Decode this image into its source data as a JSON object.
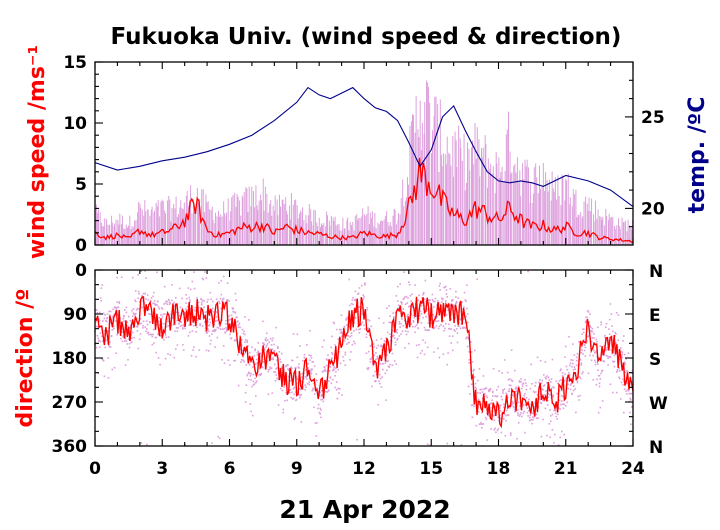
{
  "chart_data": [
    {
      "type": "line",
      "panel": "top",
      "title": "Fukuoka Univ. (wind speed & direction)",
      "xlabel": "21 Apr 2022",
      "xlim": [
        0,
        24
      ],
      "x_ticks": [
        0,
        3,
        6,
        9,
        12,
        15,
        18,
        21,
        24
      ],
      "ylabel": "wind speed /ms⁻¹",
      "ylim": [
        0,
        15
      ],
      "y_ticks": [
        0,
        5,
        10,
        15
      ],
      "y2label": "temp. /ºC",
      "y2lim": [
        18,
        28
      ],
      "y2_ticks": [
        20,
        25
      ],
      "colors": {
        "mean": "#ff0000",
        "gust": "#dda0dd",
        "temperature": "#00008b"
      },
      "series": [
        {
          "axis": "left",
          "x": [
            0,
            0.5,
            1,
            1.5,
            2,
            2.5,
            3,
            3.5,
            4,
            4.5,
            5,
            5.5,
            6,
            6.5,
            7,
            7.5,
            8,
            8.5,
            9,
            9.5,
            10,
            10.5,
            11,
            11.5,
            12,
            12.5,
            13,
            13.5,
            14,
            14.5,
            15,
            15.5,
            16,
            16.5,
            17,
            17.5,
            18,
            18.5,
            19,
            19.5,
            20,
            20.5,
            21,
            21.5,
            22,
            22.5,
            23,
            23.5,
            24
          ],
          "values": [
            1.0,
            0.6,
            0.8,
            0.5,
            1.2,
            0.8,
            1.0,
            1.3,
            2.0,
            3.5,
            1.2,
            0.8,
            1.0,
            1.4,
            1.5,
            1.6,
            1.0,
            1.5,
            1.2,
            1.0,
            0.9,
            0.7,
            0.6,
            0.6,
            1.0,
            0.8,
            0.7,
            0.9,
            3.0,
            6.0,
            5.0,
            3.5,
            2.5,
            2.0,
            3.0,
            2.5,
            2.0,
            3.0,
            2.0,
            1.5,
            1.6,
            1.2,
            1.5,
            1.0,
            1.0,
            0.6,
            0.5,
            0.4,
            0.3
          ]
        },
        {
          "axis": "left",
          "x": [
            0,
            0.5,
            1,
            1.5,
            2,
            2.5,
            3,
            3.5,
            4,
            4.5,
            5,
            5.5,
            6,
            6.5,
            7,
            7.5,
            8,
            8.5,
            9,
            9.5,
            10,
            10.5,
            11,
            11.5,
            12,
            12.5,
            13,
            13.5,
            14,
            14.5,
            15,
            15.5,
            16,
            16.5,
            17,
            17.5,
            18,
            18.5,
            19,
            19.5,
            20,
            20.5,
            21,
            21.5,
            22,
            22.5,
            23,
            23.5,
            24
          ],
          "values": [
            3.0,
            2.0,
            2.5,
            2.0,
            3.5,
            3.0,
            3.5,
            3.5,
            4.0,
            5.0,
            3.5,
            3.0,
            3.5,
            4.0,
            4.5,
            5.0,
            3.5,
            4.0,
            3.5,
            3.0,
            2.5,
            2.5,
            2.0,
            2.0,
            3.0,
            2.5,
            2.5,
            3.0,
            8.0,
            14.0,
            12.0,
            10.0,
            9.0,
            8.0,
            9.0,
            8.0,
            7.0,
            10.0,
            7.0,
            6.0,
            7.0,
            5.0,
            6.0,
            4.0,
            4.0,
            3.0,
            2.5,
            2.0,
            2.0
          ]
        },
        {
          "axis": "right",
          "x": [
            0,
            1,
            2,
            3,
            4,
            5,
            6,
            7,
            8,
            9,
            9.5,
            10,
            10.5,
            11,
            11.5,
            12,
            12.5,
            13,
            13.5,
            14,
            14.5,
            15,
            15.5,
            16,
            16.5,
            17,
            17.5,
            18,
            18.5,
            19,
            19.5,
            20,
            21,
            22,
            23,
            24
          ],
          "values": [
            22.5,
            22.1,
            22.3,
            22.6,
            22.8,
            23.1,
            23.5,
            24.0,
            24.8,
            25.8,
            26.6,
            26.2,
            26.0,
            26.3,
            26.6,
            26.0,
            25.5,
            25.3,
            24.8,
            23.6,
            22.3,
            23.2,
            25.0,
            25.6,
            24.3,
            23.1,
            22.0,
            21.5,
            21.4,
            21.5,
            21.4,
            21.2,
            21.8,
            21.5,
            21.0,
            20.1
          ]
        }
      ]
    },
    {
      "type": "scatter",
      "panel": "bottom",
      "xlabel": "21 Apr 2022",
      "xlim": [
        0,
        24
      ],
      "x_ticks": [
        0,
        3,
        6,
        9,
        12,
        15,
        18,
        21,
        24
      ],
      "ylabel": "direction /º",
      "ylim": [
        0,
        360
      ],
      "y_inverted": true,
      "y_ticks": [
        0,
        90,
        180,
        270,
        360
      ],
      "y2_ticks": [
        "N",
        "E",
        "S",
        "W",
        "N"
      ],
      "colors": {
        "mean": "#ff0000",
        "samples": "#dda0dd"
      },
      "series": [
        {
          "x": [
            0,
            0.5,
            1,
            1.5,
            2,
            2.5,
            3,
            3.5,
            4,
            4.5,
            5,
            5.5,
            6,
            6.5,
            7,
            7.5,
            8,
            8.5,
            9,
            9.5,
            10,
            10.5,
            11,
            11.5,
            12,
            12.5,
            13,
            13.5,
            14,
            14.5,
            15,
            15.5,
            16,
            16.5,
            17,
            17.5,
            18,
            18.5,
            19,
            19.5,
            20,
            20.5,
            21,
            21.5,
            22,
            22.5,
            23,
            23.5,
            24
          ],
          "values": [
            120,
            130,
            100,
            130,
            80,
            95,
            110,
            90,
            90,
            85,
            100,
            80,
            100,
            150,
            200,
            180,
            170,
            230,
            230,
            200,
            260,
            200,
            160,
            90,
            80,
            200,
            170,
            100,
            90,
            80,
            90,
            90,
            100,
            80,
            280,
            270,
            300,
            260,
            260,
            280,
            250,
            270,
            240,
            200,
            120,
            200,
            140,
            200,
            240
          ]
        }
      ]
    }
  ]
}
